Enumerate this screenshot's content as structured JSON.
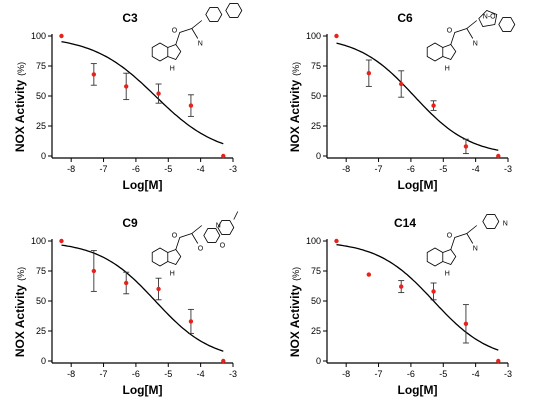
{
  "chart_data": [
    {
      "type": "scatter",
      "title": "C3",
      "xlabel": "Log[M]",
      "ylabel": "NOX Activity",
      "ylabel_unit": "(%)",
      "xlim": [
        -8.5,
        -3
      ],
      "ylim": [
        0,
        100
      ],
      "xticks": [
        "-8",
        "-7",
        "-6",
        "-5",
        "-4",
        "-3"
      ],
      "yticks": [
        "0",
        "25",
        "50",
        "75",
        "100"
      ],
      "points": [
        {
          "x": -8.3,
          "y": 100
        },
        {
          "x": -7.3,
          "y": 68,
          "err": 9
        },
        {
          "x": -6.3,
          "y": 58,
          "err": 11
        },
        {
          "x": -5.3,
          "y": 52,
          "err": 8
        },
        {
          "x": -4.3,
          "y": 42,
          "err": 9
        },
        {
          "x": -3.3,
          "y": 0
        }
      ],
      "fit": {
        "top": 100,
        "bottom": 0,
        "logIC50": -5.4,
        "hill": 0.45
      },
      "grid": false,
      "structure_labels": [
        "O",
        "N",
        "H"
      ]
    },
    {
      "type": "scatter",
      "title": "C6",
      "xlabel": "Log[M]",
      "ylabel": "NOX Activity",
      "ylabel_unit": "(%)",
      "xlim": [
        -8.5,
        -3
      ],
      "ylim": [
        0,
        100
      ],
      "xticks": [
        "-8",
        "-7",
        "-6",
        "-5",
        "-4",
        "-3"
      ],
      "yticks": [
        "0",
        "25",
        "50",
        "75",
        "100"
      ],
      "points": [
        {
          "x": -8.3,
          "y": 100
        },
        {
          "x": -7.3,
          "y": 69,
          "err": 11
        },
        {
          "x": -6.3,
          "y": 60,
          "err": 11
        },
        {
          "x": -5.3,
          "y": 42,
          "err": 4
        },
        {
          "x": -4.3,
          "y": 8,
          "err": 6
        },
        {
          "x": -3.3,
          "y": 0
        }
      ],
      "fit": {
        "top": 100,
        "bottom": 0,
        "logIC50": -5.9,
        "hill": 0.5
      },
      "grid": false,
      "structure_labels": [
        "O",
        "N",
        "N-O",
        "H"
      ]
    },
    {
      "type": "scatter",
      "title": "C9",
      "xlabel": "Log[M]",
      "ylabel": "NOX Activity",
      "ylabel_unit": "(%)",
      "xlim": [
        -8.5,
        -3
      ],
      "ylim": [
        0,
        100
      ],
      "xticks": [
        "-8",
        "-7",
        "-6",
        "-5",
        "-4",
        "-3"
      ],
      "yticks": [
        "0",
        "25",
        "50",
        "75",
        "100"
      ],
      "points": [
        {
          "x": -8.3,
          "y": 100
        },
        {
          "x": -7.3,
          "y": 75,
          "err": 17
        },
        {
          "x": -6.3,
          "y": 65,
          "err": 9
        },
        {
          "x": -5.3,
          "y": 60,
          "err": 9
        },
        {
          "x": -4.3,
          "y": 33,
          "err": 10
        },
        {
          "x": -3.3,
          "y": 0
        }
      ],
      "fit": {
        "top": 100,
        "bottom": 0,
        "logIC50": -5.4,
        "hill": 0.5
      },
      "grid": false,
      "structure_labels": [
        "O",
        "O",
        "N",
        "O",
        "H"
      ]
    },
    {
      "type": "scatter",
      "title": "C14",
      "xlabel": "Log[M]",
      "ylabel": "NOX Activity",
      "ylabel_unit": "(%)",
      "xlim": [
        -8.5,
        -3
      ],
      "ylim": [
        0,
        100
      ],
      "xticks": [
        "-8",
        "-7",
        "-6",
        "-5",
        "-4",
        "-3"
      ],
      "yticks": [
        "0",
        "25",
        "50",
        "75",
        "100"
      ],
      "points": [
        {
          "x": -8.3,
          "y": 100
        },
        {
          "x": -7.3,
          "y": 72
        },
        {
          "x": -6.3,
          "y": 62,
          "err": 5
        },
        {
          "x": -5.3,
          "y": 58,
          "err": 7
        },
        {
          "x": -4.3,
          "y": 31,
          "err": 16
        },
        {
          "x": -3.3,
          "y": 0
        }
      ],
      "fit": {
        "top": 100,
        "bottom": 0,
        "logIC50": -5.3,
        "hill": 0.5
      },
      "grid": false,
      "structure_labels": [
        "O",
        "N",
        "N",
        "H"
      ]
    }
  ],
  "colors": {
    "point": "#e8221b",
    "errorbar": "#333333",
    "curve": "#000000",
    "axis": "#000000"
  }
}
